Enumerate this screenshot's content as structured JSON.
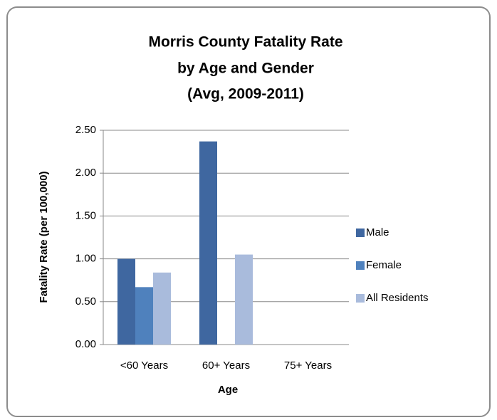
{
  "chart_data": {
    "type": "bar",
    "title": [
      "Morris County Fatality Rate",
      "by Age and Gender",
      "(Avg, 2009-2011)"
    ],
    "y_label": "Fatality Rate (per 100,000)",
    "x_label": "Age",
    "categories": [
      "<60 Years",
      "60+ Years",
      "75+ Years"
    ],
    "series": [
      {
        "name": "Male",
        "color": "#3f67a0",
        "values": [
          1.0,
          2.37,
          null
        ]
      },
      {
        "name": "Female",
        "color": "#4f81bd",
        "values": [
          0.67,
          null,
          null
        ]
      },
      {
        "name": "All Residents",
        "color": "#a9bbdc",
        "values": [
          0.84,
          1.05,
          null
        ]
      }
    ],
    "ylim": [
      0,
      2.5
    ],
    "yticks": [
      {
        "value": 0,
        "label": "0.00"
      },
      {
        "value": 0.5,
        "label": "0.50"
      },
      {
        "value": 1,
        "label": "1.00"
      },
      {
        "value": 1.5,
        "label": "1.50"
      },
      {
        "value": 2,
        "label": "2.00"
      },
      {
        "value": 2.5,
        "label": "2.50"
      }
    ],
    "grid": true,
    "legend": "right"
  }
}
